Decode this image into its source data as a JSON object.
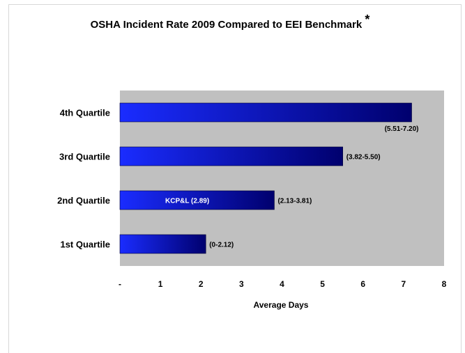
{
  "chart_data": {
    "type": "bar",
    "orientation": "horizontal",
    "title": "OSHA Incident Rate 2009 Compared to EEI Benchmark",
    "title_mark": "*",
    "xlabel": "Average Days",
    "ylabel": "",
    "xlim": [
      0,
      8
    ],
    "x_ticks": [
      "-",
      "1",
      "2",
      "3",
      "4",
      "5",
      "6",
      "7",
      "8"
    ],
    "categories": [
      "4th Quartile",
      "3rd Quartile",
      "2nd Quartile",
      "1st Quartile"
    ],
    "values": [
      7.2,
      5.5,
      3.81,
      2.12
    ],
    "data_labels": [
      "(5.51-7.20)",
      "(3.82-5.50)",
      "(2.13-3.81)",
      "(0-2.12)"
    ],
    "annotation": "KCP&L (2.89)",
    "annotation_value": 2.89,
    "plot_background": "#c0c0c0",
    "bar_color_dark": "#00006e",
    "bar_color_light": "#1a2cff",
    "grid": false,
    "legend": "none"
  }
}
